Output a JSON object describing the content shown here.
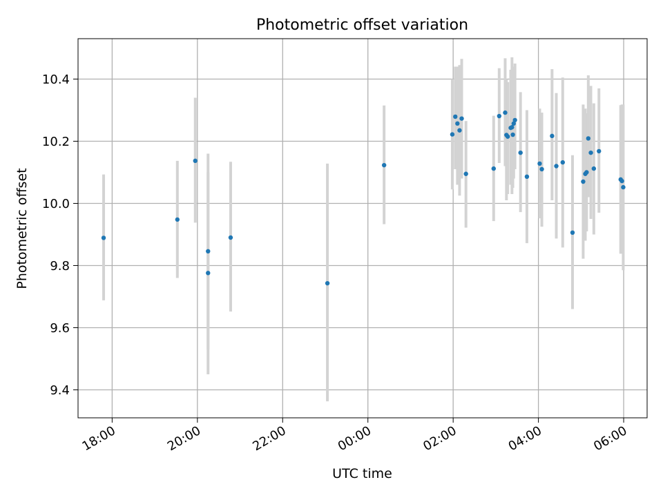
{
  "chart_data": {
    "type": "scatter",
    "title": "Photometric offset variation",
    "xlabel": "UTC time",
    "ylabel": "Photometric offset",
    "x_axis": {
      "kind": "time",
      "unit": "hours",
      "range": [
        -6.8,
        6.55
      ],
      "ticks": [
        {
          "value": -6,
          "label": "18:00"
        },
        {
          "value": -4,
          "label": "20:00"
        },
        {
          "value": -2,
          "label": "22:00"
        },
        {
          "value": 0,
          "label": "00:00"
        },
        {
          "value": 2,
          "label": "02:00"
        },
        {
          "value": 4,
          "label": "04:00"
        },
        {
          "value": 6,
          "label": "06:00"
        }
      ],
      "tick_label_rotation": "rotated"
    },
    "y_axis": {
      "range": [
        9.31,
        10.53
      ],
      "ticks": [
        9.4,
        9.6,
        9.8,
        10.0,
        10.2,
        10.4
      ],
      "tick_labels": [
        "9.4",
        "9.6",
        "9.8",
        "10.0",
        "10.2",
        "10.4"
      ]
    },
    "grid": true,
    "legend": null,
    "colors": {
      "marker": "#1f77b4",
      "errorbar": "#d3d3d3",
      "grid": "#b0b0b0"
    },
    "points": [
      {
        "t": -6.2,
        "y": 9.889,
        "lo": 9.688,
        "hi": 10.093
      },
      {
        "t": -4.47,
        "y": 9.948,
        "lo": 9.76,
        "hi": 10.137
      },
      {
        "t": -4.05,
        "y": 10.137,
        "lo": 9.938,
        "hi": 10.34
      },
      {
        "t": -3.75,
        "y": 9.846,
        "lo": 9.53,
        "hi": 10.16
      },
      {
        "t": -3.75,
        "y": 9.776,
        "lo": 9.45,
        "hi": 10.1
      },
      {
        "t": -3.22,
        "y": 9.89,
        "lo": 9.652,
        "hi": 10.134
      },
      {
        "t": -0.95,
        "y": 9.743,
        "lo": 9.363,
        "hi": 10.128
      },
      {
        "t": 0.38,
        "y": 10.123,
        "lo": 9.933,
        "hi": 10.315
      },
      {
        "t": 1.98,
        "y": 10.222,
        "lo": 10.045,
        "hi": 10.4
      },
      {
        "t": 2.05,
        "y": 10.279,
        "lo": 10.11,
        "hi": 10.44
      },
      {
        "t": 2.1,
        "y": 10.257,
        "lo": 10.06,
        "hi": 10.44
      },
      {
        "t": 2.15,
        "y": 10.235,
        "lo": 10.025,
        "hi": 10.445
      },
      {
        "t": 2.2,
        "y": 10.273,
        "lo": 10.08,
        "hi": 10.465
      },
      {
        "t": 2.3,
        "y": 10.095,
        "lo": 9.922,
        "hi": 10.265
      },
      {
        "t": 2.95,
        "y": 10.112,
        "lo": 9.943,
        "hi": 10.282
      },
      {
        "t": 3.08,
        "y": 10.281,
        "lo": 10.13,
        "hi": 10.435
      },
      {
        "t": 3.22,
        "y": 10.292,
        "lo": 10.12,
        "hi": 10.467
      },
      {
        "t": 3.25,
        "y": 10.22,
        "lo": 10.01,
        "hi": 10.4
      },
      {
        "t": 3.28,
        "y": 10.215,
        "lo": 10.03,
        "hi": 10.39
      },
      {
        "t": 3.35,
        "y": 10.243,
        "lo": 10.06,
        "hi": 10.43
      },
      {
        "t": 3.38,
        "y": 10.245,
        "lo": 10.03,
        "hi": 10.47
      },
      {
        "t": 3.4,
        "y": 10.221,
        "lo": 10.05,
        "hi": 10.39
      },
      {
        "t": 3.42,
        "y": 10.257,
        "lo": 10.08,
        "hi": 10.44
      },
      {
        "t": 3.45,
        "y": 10.268,
        "lo": 10.11,
        "hi": 10.45
      },
      {
        "t": 3.58,
        "y": 10.163,
        "lo": 9.972,
        "hi": 10.358
      },
      {
        "t": 3.73,
        "y": 10.086,
        "lo": 9.872,
        "hi": 10.3
      },
      {
        "t": 4.03,
        "y": 10.128,
        "lo": 9.952,
        "hi": 10.305
      },
      {
        "t": 4.08,
        "y": 10.11,
        "lo": 9.925,
        "hi": 10.292
      },
      {
        "t": 4.32,
        "y": 10.217,
        "lo": 10.01,
        "hi": 10.432
      },
      {
        "t": 4.42,
        "y": 10.12,
        "lo": 9.887,
        "hi": 10.355
      },
      {
        "t": 4.57,
        "y": 10.132,
        "lo": 9.858,
        "hi": 10.405
      },
      {
        "t": 4.8,
        "y": 9.906,
        "lo": 9.66,
        "hi": 10.155
      },
      {
        "t": 5.05,
        "y": 10.07,
        "lo": 9.822,
        "hi": 10.318
      },
      {
        "t": 5.1,
        "y": 10.095,
        "lo": 9.88,
        "hi": 10.305
      },
      {
        "t": 5.13,
        "y": 10.1,
        "lo": 9.91,
        "hi": 10.29
      },
      {
        "t": 5.17,
        "y": 10.209,
        "lo": 10.02,
        "hi": 10.412
      },
      {
        "t": 5.23,
        "y": 10.163,
        "lo": 9.95,
        "hi": 10.378
      },
      {
        "t": 5.3,
        "y": 10.112,
        "lo": 9.9,
        "hi": 10.322
      },
      {
        "t": 5.42,
        "y": 10.168,
        "lo": 9.97,
        "hi": 10.37
      },
      {
        "t": 5.93,
        "y": 10.077,
        "lo": 9.838,
        "hi": 10.316
      },
      {
        "t": 5.96,
        "y": 10.072,
        "lo": 9.86,
        "hi": 10.318
      },
      {
        "t": 5.99,
        "y": 10.052,
        "lo": 9.785,
        "hi": 10.318
      }
    ]
  }
}
